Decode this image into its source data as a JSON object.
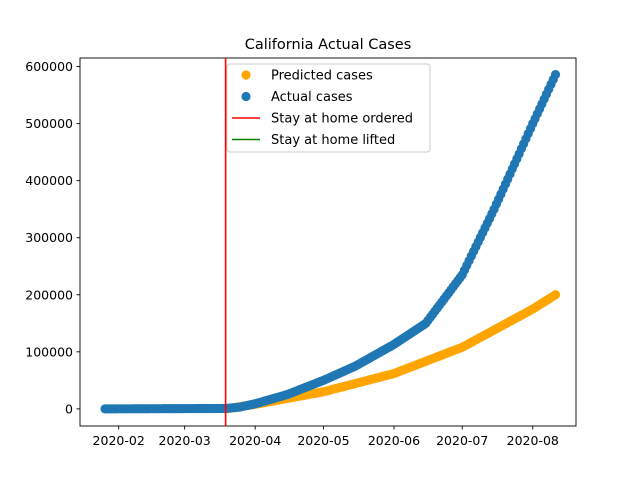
{
  "chart_data": {
    "type": "scatter",
    "title": "California Actual Cases",
    "xlabel": "",
    "ylabel": "",
    "x_axis_type": "date",
    "xlim": [
      "2020-01-15",
      "2020-08-20"
    ],
    "ylim": [
      -30000,
      615000
    ],
    "x_ticks": [
      "2020-02",
      "2020-03",
      "2020-04",
      "2020-05",
      "2020-06",
      "2020-07",
      "2020-08"
    ],
    "x_tick_dates": [
      "2020-02-01",
      "2020-03-01",
      "2020-04-01",
      "2020-05-01",
      "2020-06-01",
      "2020-07-01",
      "2020-08-01"
    ],
    "y_ticks": [
      0,
      100000,
      200000,
      300000,
      400000,
      500000,
      600000
    ],
    "y_tick_labels": [
      "0",
      "100000",
      "200000",
      "300000",
      "400000",
      "500000",
      "600000"
    ],
    "grid": false,
    "legend": {
      "position": "top-center",
      "entries": [
        {
          "label": "Predicted cases",
          "kind": "marker",
          "color": "#FFA500"
        },
        {
          "label": "Actual cases",
          "kind": "marker",
          "color": "#1F77B4"
        },
        {
          "label": "Stay at home ordered",
          "kind": "line",
          "color": "#FF0000"
        },
        {
          "label": "Stay at home lifted",
          "kind": "line",
          "color": "#008000"
        }
      ]
    },
    "vertical_lines": [
      {
        "name": "Stay at home ordered",
        "date": "2020-03-19",
        "color": "#FF0000"
      }
    ],
    "series": [
      {
        "name": "Actual cases",
        "color": "#1F77B4",
        "date_start": "2020-01-26",
        "date_end": "2020-08-11",
        "anchors": [
          [
            "2020-01-26",
            0
          ],
          [
            "2020-03-19",
            800
          ],
          [
            "2020-03-25",
            3000
          ],
          [
            "2020-04-01",
            9000
          ],
          [
            "2020-04-15",
            25000
          ],
          [
            "2020-05-01",
            50000
          ],
          [
            "2020-05-15",
            75000
          ],
          [
            "2020-06-01",
            113000
          ],
          [
            "2020-06-15",
            150000
          ],
          [
            "2020-07-01",
            235000
          ],
          [
            "2020-07-15",
            350000
          ],
          [
            "2020-08-01",
            500000
          ],
          [
            "2020-08-11",
            586000
          ]
        ]
      },
      {
        "name": "Predicted cases",
        "color": "#FFA500",
        "date_start": "2020-03-19",
        "date_end": "2020-08-11",
        "anchors": [
          [
            "2020-03-19",
            0
          ],
          [
            "2020-04-01",
            8000
          ],
          [
            "2020-05-01",
            30000
          ],
          [
            "2020-06-01",
            62000
          ],
          [
            "2020-07-01",
            108000
          ],
          [
            "2020-08-01",
            175000
          ],
          [
            "2020-08-11",
            200000
          ]
        ]
      }
    ]
  }
}
